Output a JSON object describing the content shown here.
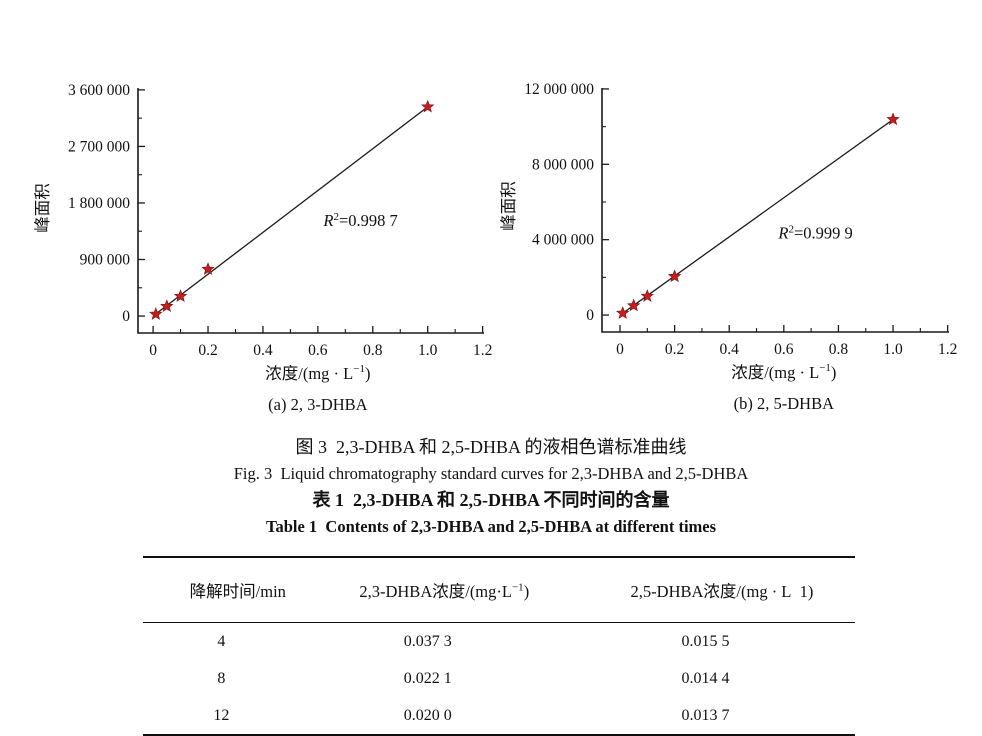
{
  "figure": {
    "caption_cn": "图 3  2,3-DHBA 和 2,5-DHBA 的液相色谱标准曲线",
    "caption_en": "Fig. 3  Liquid chromatography standard curves for 2,3-DHBA and 2,5-DHBA"
  },
  "table": {
    "caption_cn": "表 1  2,3-DHBA 和 2,5-DHBA 不同时间的含量",
    "caption_en": "Table 1  Contents of 2,3-DHBA and 2,5-DHBA at different times",
    "columns": [
      {
        "text": "降解时间/min"
      },
      {
        "pre": "2,3-DHBA浓度/(mg·L",
        "sup": "−1",
        "post": ")"
      },
      {
        "text": "2,5-DHBA浓度/(mg · L  1)"
      }
    ],
    "rows": [
      {
        "cells": [
          "4",
          "0.037 3",
          "0.015 5"
        ]
      },
      {
        "cells": [
          "8",
          "0.022 1",
          "0.014 4"
        ]
      },
      {
        "cells": [
          "12",
          "0.020 0",
          "0.013 7"
        ]
      }
    ]
  },
  "chart_data": [
    {
      "type": "scatter",
      "subcaption": "(a) 2, 3-DHBA",
      "xlabel": {
        "pre": "浓度/(mg · L",
        "sup": "−1",
        "post": ")"
      },
      "ylabel": "峰面积",
      "r2": {
        "symbol": "R",
        "sup": "2",
        "rest": "=0.998 7"
      },
      "r2_pos": [
        0.62,
        1430000
      ],
      "xlim": [
        -0.055,
        1.205
      ],
      "ylim": [
        -270000,
        3630000
      ],
      "x_ticks": [
        {
          "v": 0,
          "label": "0"
        },
        {
          "v": 0.2,
          "label": "0.2"
        },
        {
          "v": 0.4,
          "label": "0.4"
        },
        {
          "v": 0.6,
          "label": "0.6"
        },
        {
          "v": 0.8,
          "label": "0.8"
        },
        {
          "v": 1.0,
          "label": "1.0"
        },
        {
          "v": 1.2,
          "label": "1.2"
        }
      ],
      "x_minor": [
        0.1,
        0.3,
        0.5,
        0.7,
        0.9,
        1.1
      ],
      "y_ticks": [
        {
          "v": 0,
          "label": "0"
        },
        {
          "v": 900000,
          "label": "900 000"
        },
        {
          "v": 1800000,
          "label": "1 800 000"
        },
        {
          "v": 2700000,
          "label": "2 700 000"
        },
        {
          "v": 3600000,
          "label": "3 600 000"
        }
      ],
      "y_minor": [
        450000,
        1350000,
        2250000,
        3150000
      ],
      "points": [
        [
          0.01,
          30000
        ],
        [
          0.05,
          155000
        ],
        [
          0.1,
          315000
        ],
        [
          0.2,
          745000
        ],
        [
          1.0,
          3330000
        ]
      ],
      "fit_line": [
        [
          0.015,
          50000
        ],
        [
          1.0,
          3330000
        ]
      ],
      "grid": false
    },
    {
      "type": "scatter",
      "subcaption": "(b) 2, 5-DHBA",
      "xlabel": {
        "pre": "浓度/(mg · L",
        "sup": "−1",
        "post": ")"
      },
      "ylabel": "峰面积",
      "r2": {
        "symbol": "R",
        "sup": "2",
        "rest": "=0.999 9"
      },
      "r2_pos": [
        0.58,
        4070000
      ],
      "xlim": [
        -0.066,
        1.205
      ],
      "ylim": [
        -900000,
        12050000
      ],
      "x_ticks": [
        {
          "v": 0,
          "label": "0"
        },
        {
          "v": 0.2,
          "label": "0.2"
        },
        {
          "v": 0.4,
          "label": "0.4"
        },
        {
          "v": 0.6,
          "label": "0.6"
        },
        {
          "v": 0.8,
          "label": "0.8"
        },
        {
          "v": 1.0,
          "label": "1.0"
        },
        {
          "v": 1.2,
          "label": "1.2"
        }
      ],
      "x_minor": [
        0.1,
        0.3,
        0.5,
        0.7,
        0.9,
        1.1
      ],
      "y_ticks": [
        {
          "v": 0,
          "label": "0"
        },
        {
          "v": 4000000,
          "label": "4 000 000"
        },
        {
          "v": 8000000,
          "label": "8 000 000"
        },
        {
          "v": 12000000,
          "label": "12 000 000"
        }
      ],
      "y_minor": [
        2000000,
        6000000,
        10000000
      ],
      "points": [
        [
          0.01,
          100000
        ],
        [
          0.05,
          500000
        ],
        [
          0.1,
          1000000
        ],
        [
          0.2,
          2050000
        ],
        [
          1.0,
          10380000
        ]
      ],
      "fit_line": [
        [
          0.013,
          130000
        ],
        [
          1.0,
          10380000
        ]
      ],
      "grid": false
    }
  ],
  "colors": {
    "marker": "#c41e1e",
    "marker_edge": "#7a1010",
    "axis": "#1a1a1a",
    "text": "#111111"
  }
}
